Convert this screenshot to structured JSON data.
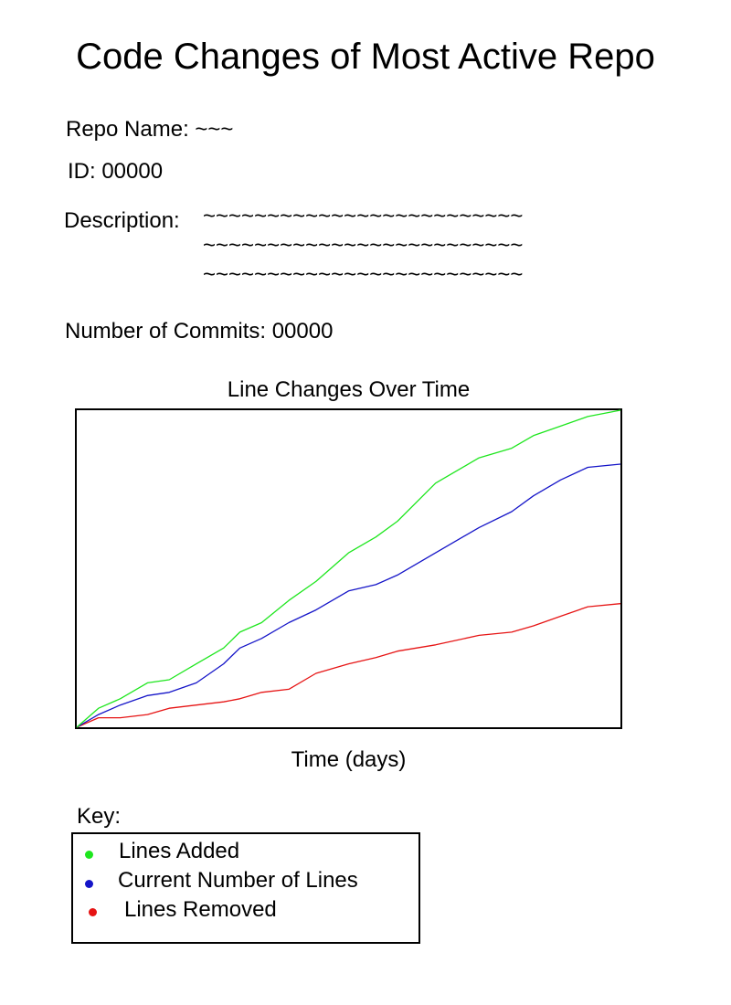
{
  "page": {
    "title": "Code Changes of Most Active Repo",
    "repo_name_label": "Repo Name: ~~~",
    "id_label": "ID: 00000",
    "description_label": "Description:",
    "description_lines": [
      "~~~~~~~~~~~~~~~~~~~~~~~~~",
      "~~~~~~~~~~~~~~~~~~~~~~~~~",
      "~~~~~~~~~~~~~~~~~~~~~~~~~"
    ],
    "commits_label": "Number of Commits: 00000"
  },
  "legend": {
    "key_label": "Key:",
    "items": [
      {
        "label": "Lines Added",
        "color": "#1ee61e",
        "icon": "green-dot-icon"
      },
      {
        "label": "Current Number of Lines",
        "color": "#1515c8",
        "icon": "blue-dot-icon"
      },
      {
        "label": "Lines Removed",
        "color": "#e61414",
        "icon": "red-dot-icon"
      }
    ]
  },
  "chart_data": {
    "type": "line",
    "title": "Line Changes Over Time",
    "xlabel": "Time (days)",
    "ylabel": "",
    "xlim": [
      0,
      100
    ],
    "ylim": [
      0,
      100
    ],
    "grid": false,
    "legend_position": "below",
    "x": [
      0,
      4,
      8,
      13,
      17,
      22,
      27,
      30,
      34,
      39,
      44,
      50,
      55,
      59,
      66,
      74,
      80,
      84,
      89,
      94,
      100
    ],
    "series": [
      {
        "name": "Lines Added",
        "color": "#1ee61e",
        "values": [
          0,
          6,
          9,
          14,
          15,
          20,
          25,
          30,
          33,
          40,
          46,
          55,
          60,
          65,
          77,
          85,
          88,
          92,
          95,
          98,
          100
        ]
      },
      {
        "name": "Current Number of Lines",
        "color": "#1515c8",
        "values": [
          0,
          4,
          7,
          10,
          11,
          14,
          20,
          25,
          28,
          33,
          37,
          43,
          45,
          48,
          55,
          63,
          68,
          73,
          78,
          82,
          83
        ]
      },
      {
        "name": "Lines Removed",
        "color": "#e61414",
        "values": [
          0,
          3,
          3,
          4,
          6,
          7,
          8,
          9,
          11,
          12,
          17,
          20,
          22,
          24,
          26,
          29,
          30,
          32,
          35,
          38,
          39
        ]
      }
    ]
  }
}
